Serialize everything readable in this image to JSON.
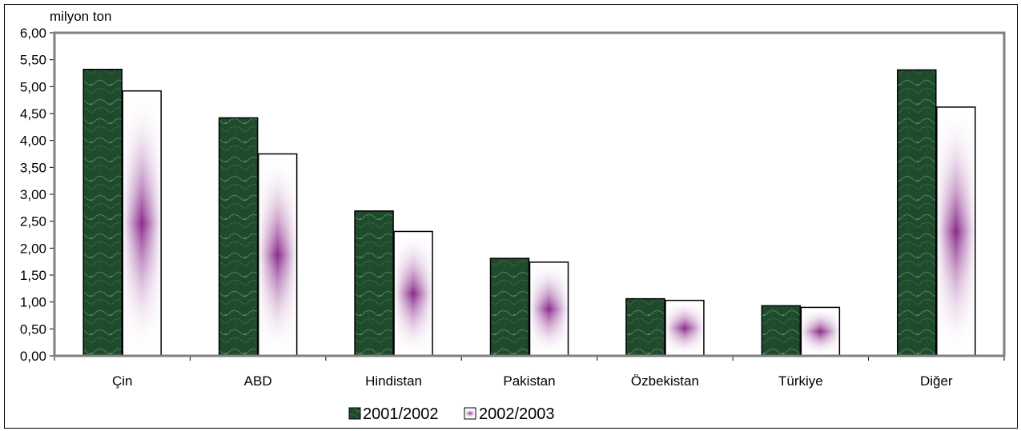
{
  "chart_data": {
    "type": "bar",
    "unit_label": "milyon ton",
    "categories": [
      "Çin",
      "ABD",
      "Hindistan",
      "Pakistan",
      "Özbekistan",
      "Türkiye",
      "Diğer"
    ],
    "series": [
      {
        "name": "2001/2002",
        "values": [
          5.32,
          4.42,
          2.69,
          1.81,
          1.06,
          0.93,
          5.31
        ]
      },
      {
        "name": "2002/2003",
        "values": [
          4.92,
          3.75,
          2.31,
          1.74,
          1.03,
          0.9,
          4.62
        ]
      }
    ],
    "ylim": [
      0,
      6
    ],
    "ytick_labels": [
      "0,00",
      "0,50",
      "1,00",
      "1,50",
      "2,00",
      "2,50",
      "3,00",
      "3,50",
      "4,00",
      "4,50",
      "5,00",
      "5,50",
      "6,00"
    ],
    "legend_position": "bottom",
    "colors": {
      "series1_dark": "#1f4a2c",
      "series1_light": "#3f7a55",
      "series2_center": "#8a2a8a",
      "series2_edge": "#ffffff",
      "plot_border": "#808080"
    }
  }
}
